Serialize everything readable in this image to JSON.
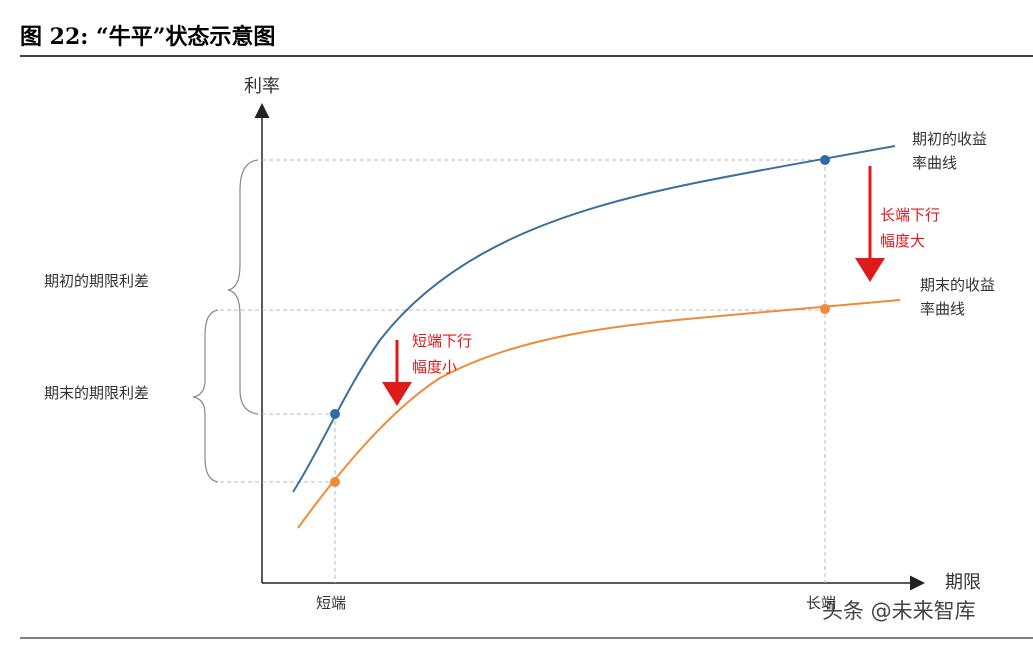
{
  "header": {
    "title": "图 22: “牛平”状态示意图"
  },
  "axes": {
    "y_label": "利率",
    "x_label": "期限",
    "x_ticks": [
      "短端",
      "长端"
    ]
  },
  "curves": [
    {
      "label_lines": [
        "期初的收益",
        "率曲线"
      ]
    },
    {
      "label_lines": [
        "期末的收益",
        "率曲线"
      ]
    }
  ],
  "annotations": [
    {
      "lines": [
        "长端下行",
        "幅度大"
      ]
    },
    {
      "lines": [
        "短端下行",
        "幅度小"
      ]
    }
  ],
  "spreads": [
    "期初的期限利差",
    "期末的期限利差"
  ],
  "watermark": "头条 @未来智库"
}
